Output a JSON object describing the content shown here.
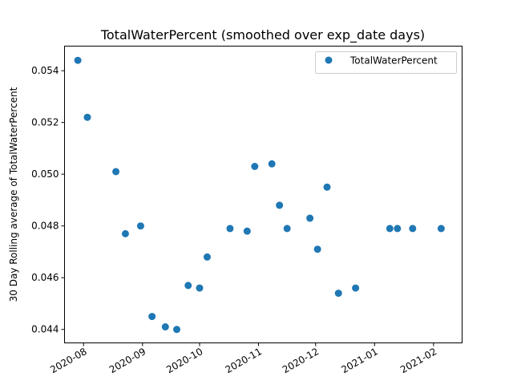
{
  "chart_data": {
    "type": "scatter",
    "title": "TotalWaterPercent (smoothed over exp_date days)",
    "xlabel": "",
    "ylabel": "30 Day Rolling average of TotalWaterPercent",
    "x_type": "date",
    "xlim": [
      "2020-07-22",
      "2021-02-16"
    ],
    "ylim": [
      0.04348,
      0.05495
    ],
    "x_ticks": [
      "2020-08-01",
      "2020-09-01",
      "2020-10-01",
      "2020-11-01",
      "2020-12-01",
      "2021-01-01",
      "2021-02-01"
    ],
    "x_tick_labels": [
      "2020-08",
      "2020-09",
      "2020-10",
      "2020-11",
      "2020-12",
      "2021-01",
      "2021-02"
    ],
    "y_ticks": [
      0.044,
      0.046,
      0.048,
      0.05,
      0.052,
      0.054
    ],
    "y_tick_labels": [
      "0.044",
      "0.046",
      "0.048",
      "0.050",
      "0.052",
      "0.054"
    ],
    "grid": false,
    "legend_position": "top-right",
    "series": [
      {
        "name": "TotalWaterPercent",
        "color": "#1f77b4",
        "marker": "circle",
        "x": [
          "2020-07-29",
          "2020-08-03",
          "2020-08-18",
          "2020-08-23",
          "2020-08-31",
          "2020-09-06",
          "2020-09-13",
          "2020-09-19",
          "2020-09-25",
          "2020-10-01",
          "2020-10-05",
          "2020-10-17",
          "2020-10-26",
          "2020-10-30",
          "2020-11-08",
          "2020-11-12",
          "2020-11-16",
          "2020-11-28",
          "2020-12-02",
          "2020-12-07",
          "2020-12-13",
          "2020-12-22",
          "2021-01-09",
          "2021-01-13",
          "2021-01-21",
          "2021-02-05"
        ],
        "y": [
          0.0544,
          0.0522,
          0.0501,
          0.0477,
          0.048,
          0.0445,
          0.0441,
          0.044,
          0.0457,
          0.0456,
          0.0468,
          0.0479,
          0.0478,
          0.0503,
          0.0504,
          0.0488,
          0.0479,
          0.0483,
          0.0471,
          0.0495,
          0.0454,
          0.0456,
          0.0479,
          0.0479,
          0.0479,
          0.0479
        ]
      }
    ]
  }
}
